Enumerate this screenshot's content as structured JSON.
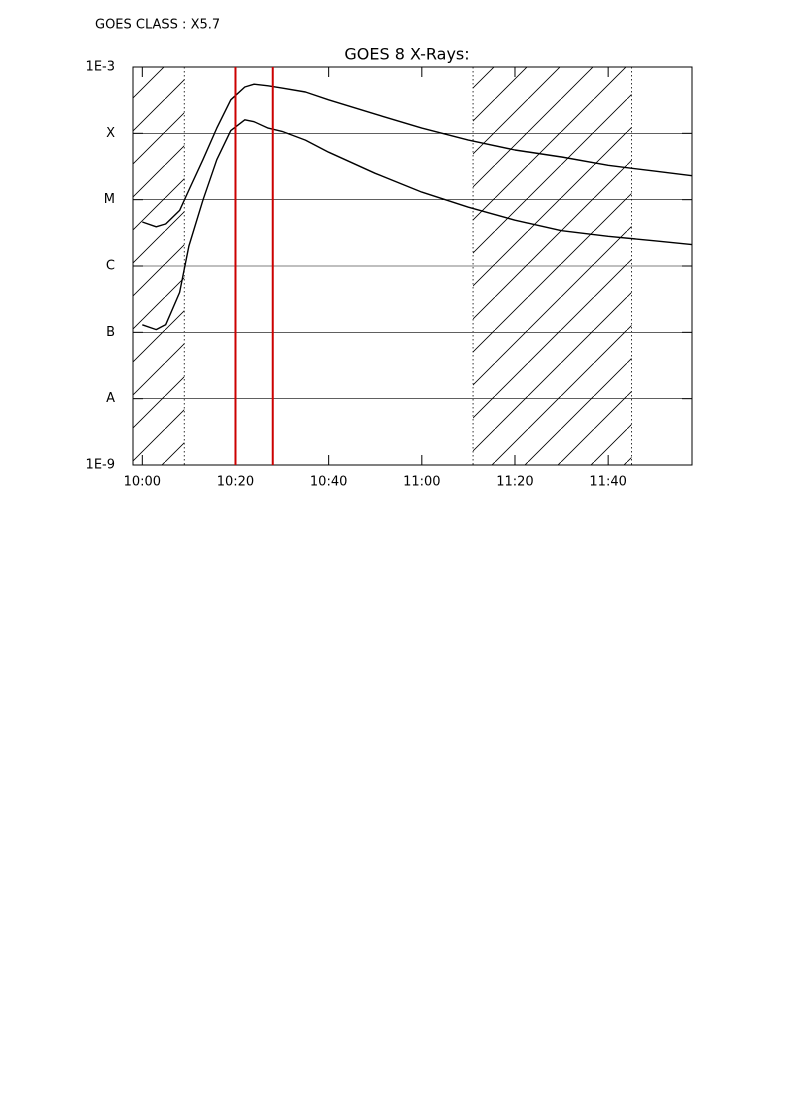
{
  "header": {
    "text": "GOES CLASS : X5.7"
  },
  "chart_data": {
    "type": "line",
    "title": "GOES 8 X-Rays:",
    "x": [
      "10:00",
      "10:03",
      "10:05",
      "10:08",
      "10:10",
      "10:13",
      "10:16",
      "10:19",
      "10:22",
      "10:24",
      "10:27",
      "10:30",
      "10:35",
      "10:40",
      "10:50",
      "11:00",
      "11:10",
      "11:20",
      "11:30",
      "11:40",
      "11:50",
      "11:58"
    ],
    "series": [
      {
        "color": "#000000",
        "values": [
          4.6e-06,
          3.9e-06,
          4.3e-06,
          6.9e-06,
          1.4e-05,
          4e-05,
          0.00012,
          0.00032,
          0.0005,
          0.00055,
          0.00052,
          0.00048,
          0.00042,
          0.00032,
          0.000195,
          0.00012,
          7.9e-05,
          5.6e-05,
          4.4e-05,
          3.3e-05,
          2.7e-05,
          2.3e-05
        ]
      },
      {
        "color": "#000000",
        "values": [
          1.3e-07,
          1.1e-07,
          1.3e-07,
          4e-07,
          2e-06,
          9.8e-06,
          4e-05,
          0.00011,
          0.00016,
          0.00015,
          0.00012,
          0.000107,
          7.9e-05,
          5.2e-05,
          2.5e-05,
          1.3e-05,
          7.7e-06,
          4.9e-06,
          3.4e-06,
          2.8e-06,
          2.4e-06,
          2.1e-06
        ]
      }
    ],
    "xlim": [
      "09:58",
      "11:58"
    ],
    "xticks": [
      "10:00",
      "10:20",
      "10:40",
      "11:00",
      "11:20",
      "11:40"
    ],
    "ylim": [
      1e-09,
      0.001
    ],
    "log_y": true,
    "grid": true,
    "yticks": [
      {
        "value": 0.001,
        "label": "1E-3"
      },
      {
        "value": 0.0001,
        "label": "X"
      },
      {
        "value": 1e-05,
        "label": "M"
      },
      {
        "value": 1e-06,
        "label": "C"
      },
      {
        "value": 1e-07,
        "label": "B"
      },
      {
        "value": 1e-08,
        "label": "A"
      },
      {
        "value": 1e-09,
        "label": "1E-9"
      }
    ],
    "shaded_intervals": [
      [
        "09:58",
        "10:09"
      ],
      [
        "11:11",
        "11:45"
      ]
    ],
    "markers": [
      "10:20",
      "10:28"
    ],
    "marker_color": "#cc0000"
  }
}
